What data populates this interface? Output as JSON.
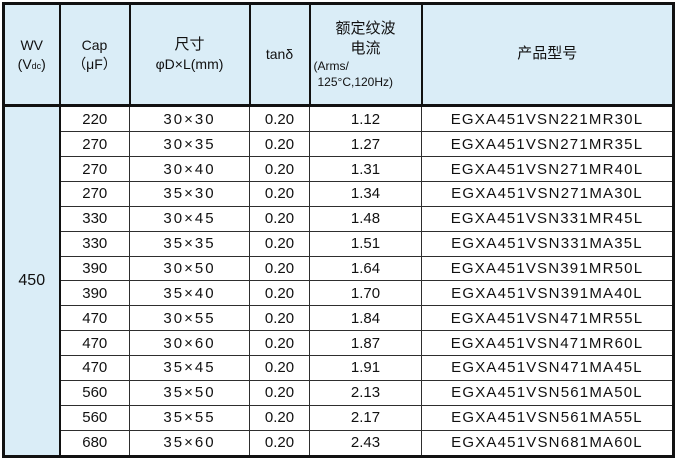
{
  "colors": {
    "header_bg": "#daedf7",
    "border_heavy": "#111111",
    "border_light": "#2e2e2e",
    "text": "#111111",
    "page_bg": "#ffffff"
  },
  "chart_data": {
    "type": "table",
    "columns": [
      {
        "id": "wv",
        "line1": "WV",
        "unit_prefix": "(V",
        "unit_sub": "dc",
        "unit_suffix": ")"
      },
      {
        "id": "cap",
        "line1": "Cap",
        "line2": "（μF）"
      },
      {
        "id": "size",
        "line1": "尺寸",
        "line2": "φD×L(mm)"
      },
      {
        "id": "tan_delta",
        "line1": "tanδ"
      },
      {
        "id": "ripple",
        "line1": "额定纹波",
        "line2": "电流",
        "line3": "(Arms/",
        "line4": "125°C,120Hz)"
      },
      {
        "id": "part_number",
        "line1": "产品型号"
      }
    ],
    "row_keys": [
      "cap",
      "size",
      "tan_delta",
      "ripple_arms",
      "part_number"
    ],
    "wv_value": "450",
    "rows": [
      {
        "cap": "220",
        "size": "30×30",
        "tan_delta": "0.20",
        "ripple_arms": "1.12",
        "part_number": "EGXA451VSN221MR30L"
      },
      {
        "cap": "270",
        "size": "30×35",
        "tan_delta": "0.20",
        "ripple_arms": "1.27",
        "part_number": "EGXA451VSN271MR35L"
      },
      {
        "cap": "270",
        "size": "30×40",
        "tan_delta": "0.20",
        "ripple_arms": "1.31",
        "part_number": "EGXA451VSN271MR40L"
      },
      {
        "cap": "270",
        "size": "35×30",
        "tan_delta": "0.20",
        "ripple_arms": "1.34",
        "part_number": "EGXA451VSN271MA30L"
      },
      {
        "cap": "330",
        "size": "30×45",
        "tan_delta": "0.20",
        "ripple_arms": "1.48",
        "part_number": "EGXA451VSN331MR45L"
      },
      {
        "cap": "330",
        "size": "35×35",
        "tan_delta": "0.20",
        "ripple_arms": "1.51",
        "part_number": "EGXA451VSN331MA35L"
      },
      {
        "cap": "390",
        "size": "30×50",
        "tan_delta": "0.20",
        "ripple_arms": "1.64",
        "part_number": "EGXA451VSN391MR50L"
      },
      {
        "cap": "390",
        "size": "35×40",
        "tan_delta": "0.20",
        "ripple_arms": "1.70",
        "part_number": "EGXA451VSN391MA40L"
      },
      {
        "cap": "470",
        "size": "30×55",
        "tan_delta": "0.20",
        "ripple_arms": "1.84",
        "part_number": "EGXA451VSN471MR55L"
      },
      {
        "cap": "470",
        "size": "30×60",
        "tan_delta": "0.20",
        "ripple_arms": "1.87",
        "part_number": "EGXA451VSN471MR60L"
      },
      {
        "cap": "470",
        "size": "35×45",
        "tan_delta": "0.20",
        "ripple_arms": "1.91",
        "part_number": "EGXA451VSN471MA45L"
      },
      {
        "cap": "560",
        "size": "35×50",
        "tan_delta": "0.20",
        "ripple_arms": "2.13",
        "part_number": "EGXA451VSN561MA50L"
      },
      {
        "cap": "560",
        "size": "35×55",
        "tan_delta": "0.20",
        "ripple_arms": "2.17",
        "part_number": "EGXA451VSN561MA55L"
      },
      {
        "cap": "680",
        "size": "35×60",
        "tan_delta": "0.20",
        "ripple_arms": "2.43",
        "part_number": "EGXA451VSN681MA60L"
      }
    ]
  }
}
